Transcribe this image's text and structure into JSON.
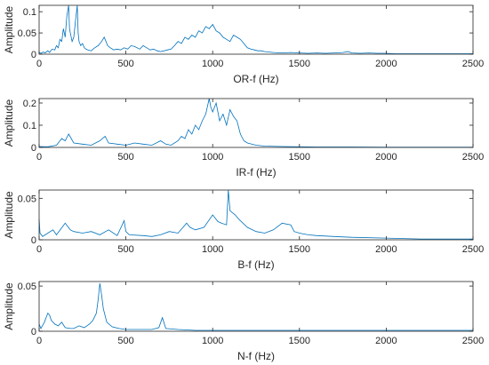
{
  "figure": {
    "line_color": "#0072BD",
    "axis_color": "#262626"
  },
  "chart_data": [
    {
      "type": "line",
      "title": "",
      "xlabel": "OR-f (Hz)",
      "ylabel": "Amplitude",
      "xlim": [
        0,
        2500
      ],
      "ylim": [
        0,
        0.115
      ],
      "xticks": [
        0,
        500,
        1000,
        1500,
        2000,
        2500
      ],
      "xtick_labels": [
        "0",
        "500",
        "1000",
        "1500",
        "2000",
        "2500"
      ],
      "yticks": [
        0,
        0.05,
        0.1
      ],
      "ytick_labels": [
        "0",
        "0.05",
        "0.1"
      ],
      "grid": false,
      "series": [
        {
          "color": "#0072BD",
          "x": [
            0,
            10,
            25,
            35,
            50,
            60,
            75,
            90,
            100,
            110,
            120,
            130,
            140,
            150,
            160,
            170,
            175,
            180,
            190,
            200,
            210,
            220,
            225,
            230,
            240,
            250,
            260,
            270,
            280,
            300,
            320,
            340,
            360,
            375,
            385,
            395,
            410,
            430,
            450,
            470,
            490,
            510,
            530,
            550,
            580,
            600,
            620,
            640,
            660,
            680,
            700,
            720,
            740,
            760,
            780,
            800,
            820,
            840,
            860,
            880,
            900,
            920,
            940,
            960,
            980,
            1000,
            1020,
            1040,
            1060,
            1080,
            1100,
            1120,
            1140,
            1160,
            1180,
            1200,
            1220,
            1240,
            1260,
            1280,
            1300,
            1350,
            1400,
            1450,
            1500,
            1550,
            1600,
            1650,
            1700,
            1750,
            1780,
            1800,
            1850,
            1900,
            1950,
            2000,
            2050,
            2100,
            2200,
            2300,
            2400,
            2500
          ],
          "y": [
            0.004,
            0.002,
            0.005,
            0.003,
            0.008,
            0.004,
            0.012,
            0.01,
            0.02,
            0.015,
            0.035,
            0.03,
            0.06,
            0.04,
            0.09,
            0.115,
            0.06,
            0.05,
            0.03,
            0.04,
            0.08,
            0.115,
            0.05,
            0.03,
            0.02,
            0.025,
            0.015,
            0.012,
            0.01,
            0.008,
            0.015,
            0.02,
            0.03,
            0.04,
            0.03,
            0.02,
            0.015,
            0.01,
            0.012,
            0.01,
            0.015,
            0.012,
            0.02,
            0.018,
            0.012,
            0.02,
            0.015,
            0.01,
            0.012,
            0.008,
            0.006,
            0.008,
            0.01,
            0.012,
            0.02,
            0.03,
            0.025,
            0.04,
            0.035,
            0.045,
            0.04,
            0.055,
            0.05,
            0.065,
            0.06,
            0.07,
            0.055,
            0.05,
            0.04,
            0.035,
            0.03,
            0.045,
            0.04,
            0.035,
            0.025,
            0.015,
            0.012,
            0.01,
            0.008,
            0.008,
            0.006,
            0.004,
            0.003,
            0.004,
            0.003,
            0.002,
            0.003,
            0.002,
            0.003,
            0.004,
            0.006,
            0.003,
            0.002,
            0.003,
            0.002,
            0.002,
            0.001,
            0.001,
            0.001,
            0.001,
            0.001,
            0.001
          ]
        }
      ]
    },
    {
      "type": "line",
      "title": "",
      "xlabel": "IR-f (Hz)",
      "ylabel": "Amplitude",
      "xlim": [
        0,
        2500
      ],
      "ylim": [
        0,
        0.22
      ],
      "xticks": [
        0,
        500,
        1000,
        1500,
        2000,
        2500
      ],
      "xtick_labels": [
        "0",
        "500",
        "1000",
        "1500",
        "2000",
        "2500"
      ],
      "yticks": [
        0,
        0.1,
        0.2
      ],
      "ytick_labels": [
        "0",
        "0.1",
        "0.2"
      ],
      "grid": false,
      "series": [
        {
          "color": "#0072BD",
          "x": [
            0,
            50,
            100,
            130,
            150,
            170,
            200,
            250,
            300,
            350,
            380,
            400,
            450,
            500,
            550,
            600,
            650,
            700,
            730,
            760,
            800,
            820,
            840,
            860,
            880,
            900,
            920,
            940,
            960,
            980,
            990,
            1000,
            1020,
            1040,
            1060,
            1080,
            1100,
            1120,
            1140,
            1160,
            1180,
            1200,
            1250,
            1300,
            1400,
            1500,
            1600,
            1700,
            1800,
            2000,
            2200,
            2500
          ],
          "y": [
            0.004,
            0.003,
            0.01,
            0.04,
            0.03,
            0.06,
            0.02,
            0.015,
            0.01,
            0.03,
            0.05,
            0.02,
            0.015,
            0.01,
            0.02,
            0.015,
            0.01,
            0.03,
            0.015,
            0.01,
            0.03,
            0.05,
            0.04,
            0.08,
            0.06,
            0.1,
            0.08,
            0.12,
            0.15,
            0.22,
            0.18,
            0.16,
            0.2,
            0.12,
            0.15,
            0.1,
            0.17,
            0.14,
            0.12,
            0.06,
            0.03,
            0.02,
            0.01,
            0.006,
            0.004,
            0.003,
            0.002,
            0.002,
            0.002,
            0.001,
            0.001,
            0.001
          ]
        }
      ]
    },
    {
      "type": "line",
      "title": "",
      "xlabel": "B-f (Hz)",
      "ylabel": "Amplitude",
      "xlim": [
        0,
        2500
      ],
      "ylim": [
        0,
        0.06
      ],
      "xticks": [
        0,
        500,
        1000,
        1500,
        2000,
        2500
      ],
      "xtick_labels": [
        "0",
        "500",
        "1000",
        "1500",
        "2000",
        "2500"
      ],
      "yticks": [
        0,
        0.05
      ],
      "ytick_labels": [
        "0",
        "0.05"
      ],
      "grid": false,
      "series": [
        {
          "color": "#0072BD",
          "x": [
            0,
            5,
            20,
            50,
            80,
            100,
            150,
            180,
            200,
            250,
            300,
            350,
            400,
            450,
            490,
            500,
            520,
            600,
            650,
            700,
            750,
            800,
            850,
            870,
            900,
            950,
            1000,
            1030,
            1050,
            1080,
            1090,
            1100,
            1130,
            1150,
            1200,
            1250,
            1300,
            1350,
            1400,
            1450,
            1470,
            1500,
            1550,
            1600,
            1700,
            1800,
            2000,
            2200,
            2500
          ],
          "y": [
            0.025,
            0.008,
            0.004,
            0.008,
            0.012,
            0.006,
            0.02,
            0.012,
            0.01,
            0.008,
            0.01,
            0.006,
            0.012,
            0.005,
            0.023,
            0.01,
            0.006,
            0.005,
            0.004,
            0.006,
            0.01,
            0.008,
            0.02,
            0.015,
            0.012,
            0.015,
            0.03,
            0.022,
            0.02,
            0.018,
            0.06,
            0.035,
            0.03,
            0.025,
            0.015,
            0.01,
            0.008,
            0.012,
            0.02,
            0.018,
            0.01,
            0.008,
            0.006,
            0.005,
            0.004,
            0.003,
            0.002,
            0.001,
            0.001
          ]
        }
      ]
    },
    {
      "type": "line",
      "title": "",
      "xlabel": "N-f (Hz)",
      "ylabel": "Amplitude",
      "xlim": [
        0,
        2500
      ],
      "ylim": [
        0,
        0.055
      ],
      "xticks": [
        0,
        500,
        1000,
        1500,
        2000,
        2500
      ],
      "xtick_labels": [
        "0",
        "500",
        "1000",
        "1500",
        "2000",
        "2500"
      ],
      "yticks": [
        0,
        0.05
      ],
      "ytick_labels": [
        "0",
        "0.05"
      ],
      "grid": false,
      "series": [
        {
          "color": "#0072BD",
          "x": [
            0,
            10,
            30,
            50,
            60,
            70,
            90,
            110,
            130,
            150,
            180,
            200,
            230,
            260,
            290,
            310,
            330,
            340,
            350,
            360,
            370,
            390,
            420,
            460,
            500,
            550,
            600,
            650,
            690,
            710,
            730,
            800,
            900,
            1000,
            1200,
            1500,
            2000,
            2500
          ],
          "y": [
            0.008,
            0.003,
            0.01,
            0.02,
            0.018,
            0.012,
            0.008,
            0.006,
            0.01,
            0.004,
            0.003,
            0.003,
            0.006,
            0.004,
            0.008,
            0.012,
            0.02,
            0.035,
            0.053,
            0.04,
            0.025,
            0.01,
            0.005,
            0.003,
            0.002,
            0.002,
            0.002,
            0.002,
            0.004,
            0.015,
            0.003,
            0.002,
            0.001,
            0.001,
            0.001,
            0.001,
            0.001,
            0.001
          ]
        }
      ]
    }
  ]
}
